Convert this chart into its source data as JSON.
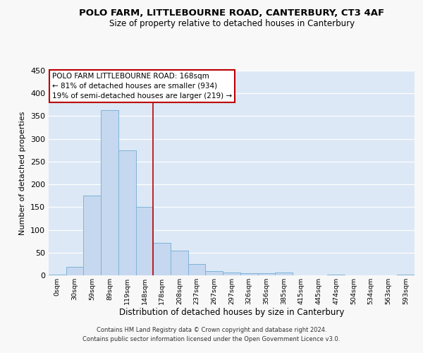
{
  "title": "POLO FARM, LITTLEBOURNE ROAD, CANTERBURY, CT3 4AF",
  "subtitle": "Size of property relative to detached houses in Canterbury",
  "xlabel": "Distribution of detached houses by size in Canterbury",
  "ylabel": "Number of detached properties",
  "bar_labels": [
    "0sqm",
    "30sqm",
    "59sqm",
    "89sqm",
    "119sqm",
    "148sqm",
    "178sqm",
    "208sqm",
    "237sqm",
    "267sqm",
    "297sqm",
    "326sqm",
    "356sqm",
    "385sqm",
    "415sqm",
    "445sqm",
    "474sqm",
    "504sqm",
    "534sqm",
    "563sqm",
    "593sqm"
  ],
  "bar_values": [
    2,
    19,
    175,
    363,
    274,
    151,
    71,
    54,
    25,
    9,
    6,
    5,
    4,
    6,
    0,
    0,
    1,
    0,
    0,
    0,
    1
  ],
  "bar_color": "#c5d8ef",
  "bar_edge_color": "#7fb3d9",
  "vline_index": 5.5,
  "vline_color": "#bb0000",
  "annotation_line1": "POLO FARM LITTLEBOURNE ROAD: 168sqm",
  "annotation_line2": "← 81% of detached houses are smaller (934)",
  "annotation_line3": "19% of semi-detached houses are larger (219) →",
  "annotation_bg": "#ffffff",
  "annotation_edge": "#bb0000",
  "ylim": [
    0,
    450
  ],
  "yticks": [
    0,
    50,
    100,
    150,
    200,
    250,
    300,
    350,
    400,
    450
  ],
  "plot_bg": "#dce8f5",
  "fig_bg": "#f8f8f8",
  "grid_color": "#ffffff",
  "footer_line1": "Contains HM Land Registry data © Crown copyright and database right 2024.",
  "footer_line2": "Contains public sector information licensed under the Open Government Licence v3.0."
}
